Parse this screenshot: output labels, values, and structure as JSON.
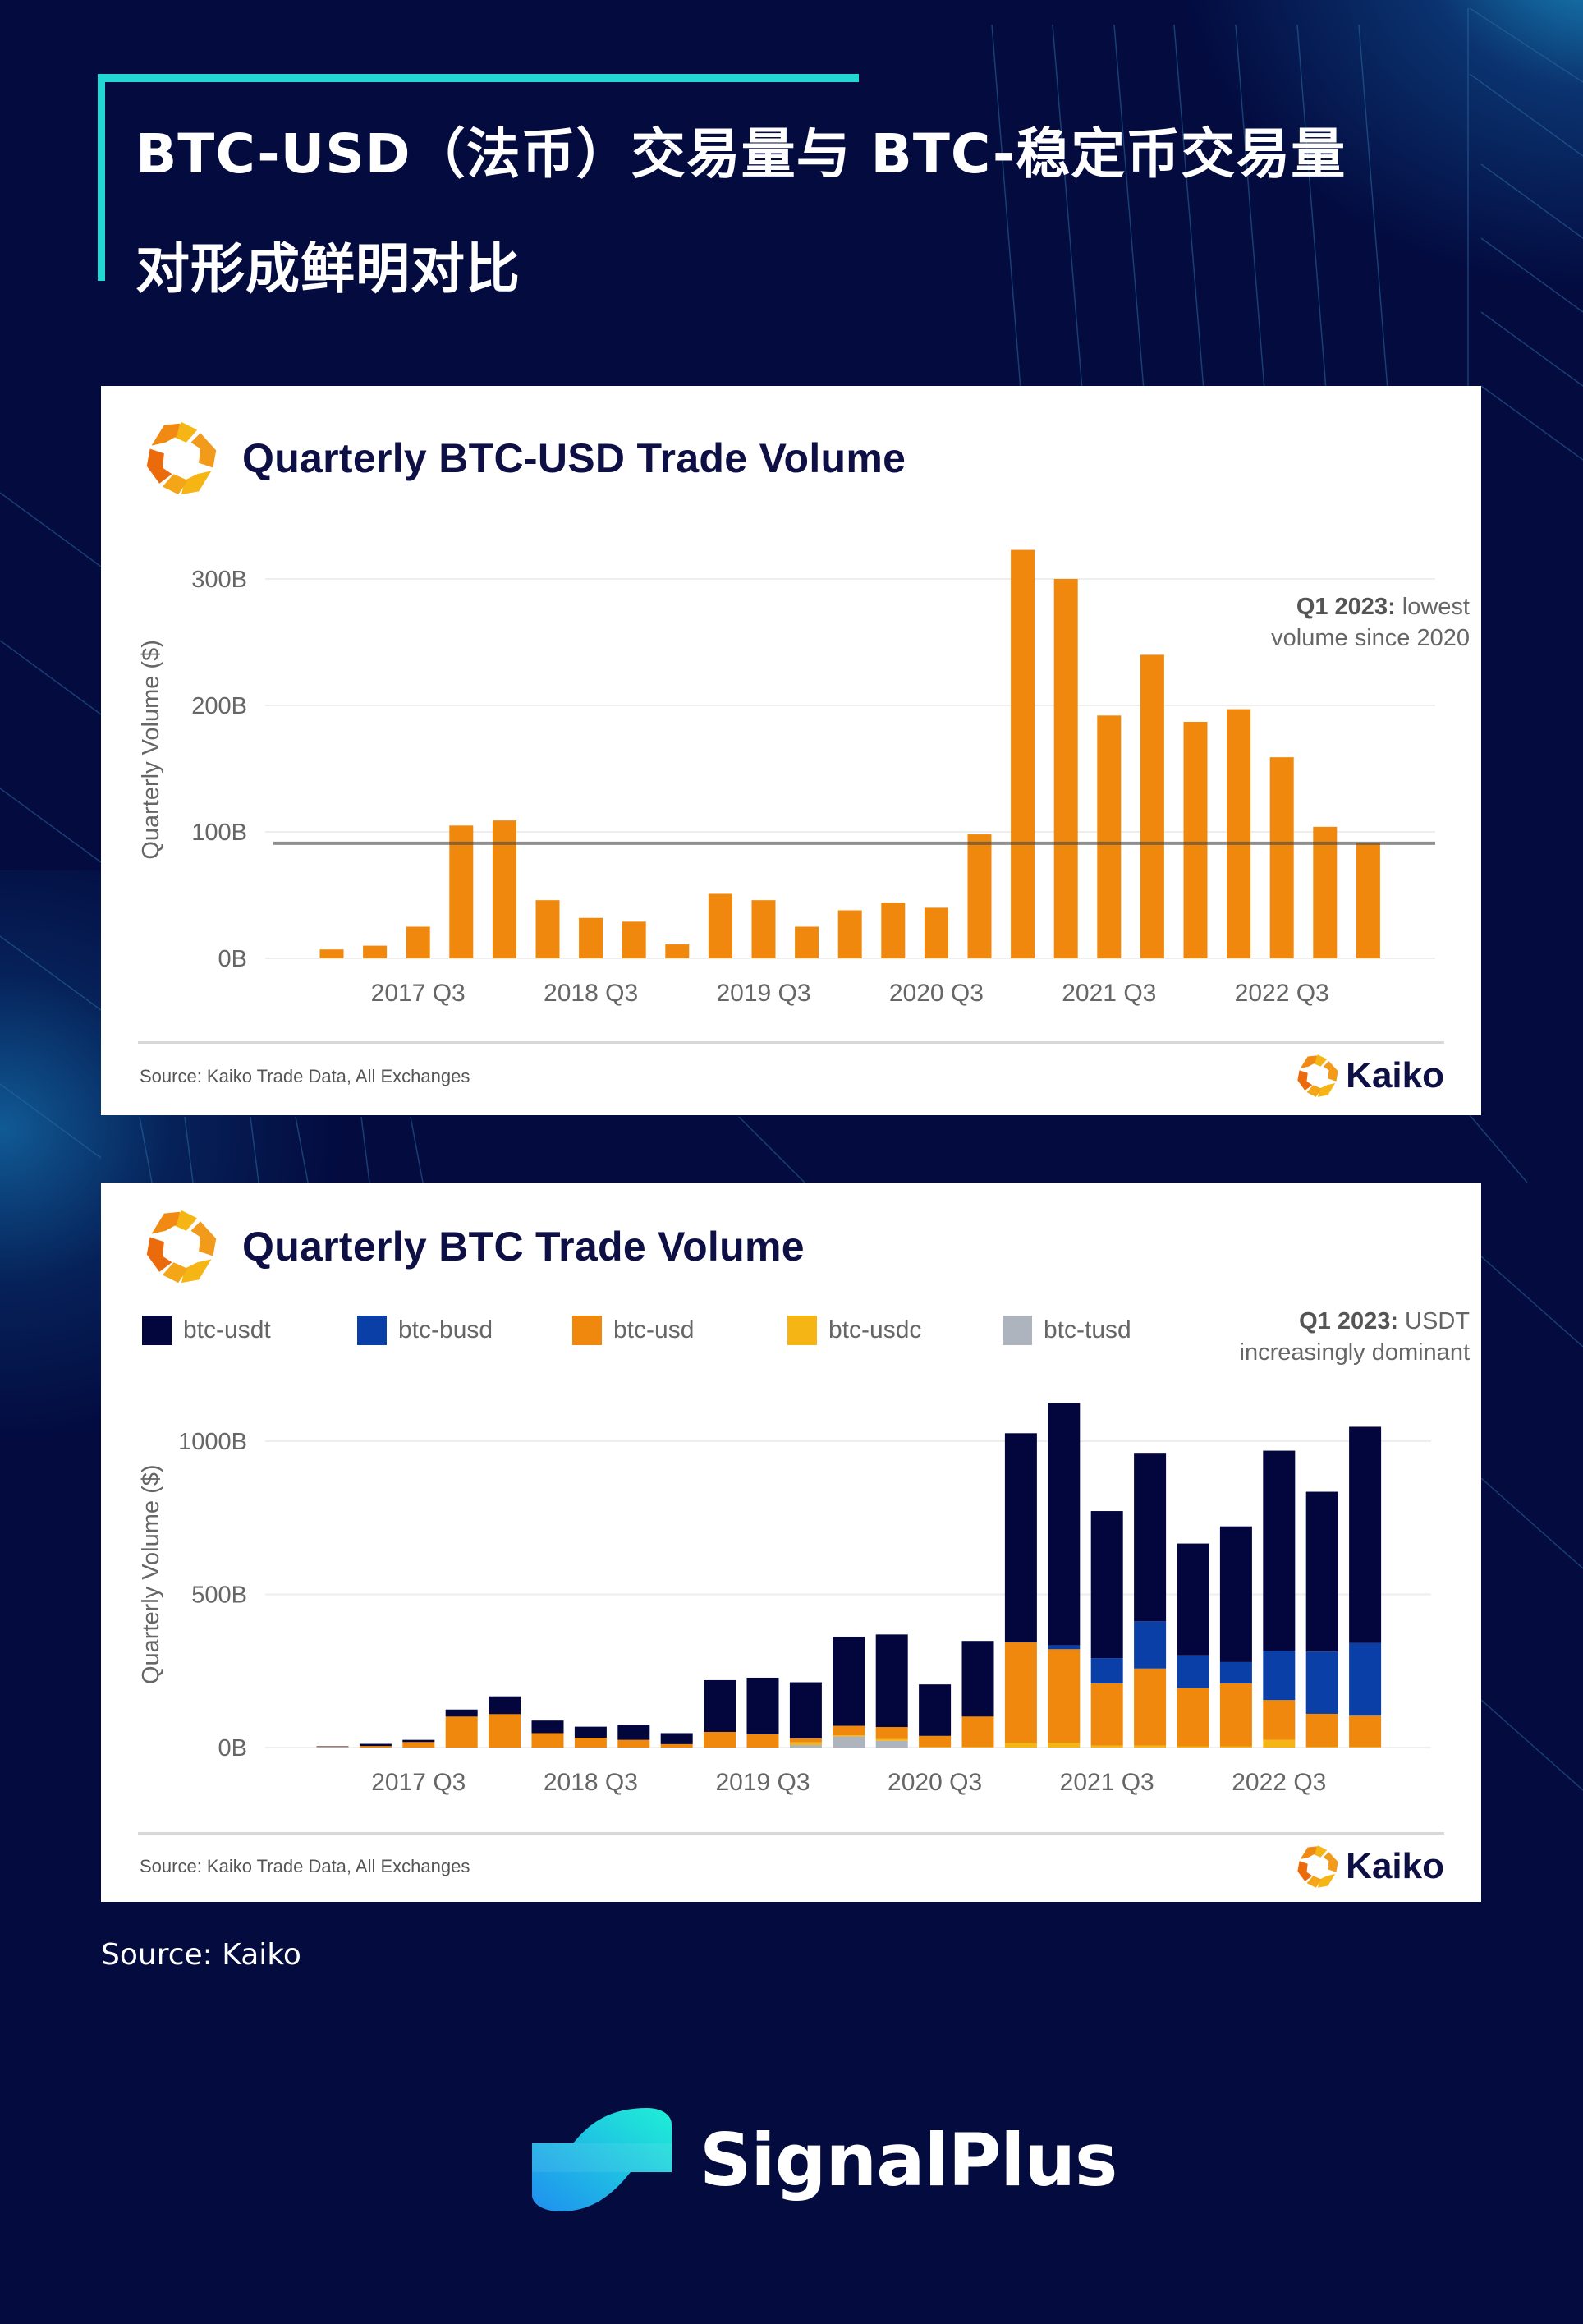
{
  "header": {
    "title_line1": "BTC-USD（法币）交易量与 BTC-稳定币交易量",
    "title_line2": "对形成鲜明对比"
  },
  "colors": {
    "background": "#030b3f",
    "accent_teal": "#22d8d5",
    "btc_usdt": "#03053d",
    "btc_busd": "#0b3fa8",
    "btc_usd": "#ef880d",
    "btc_usdc": "#f5b514",
    "btc_tusd": "#aeb4bd",
    "kaiko_navy": "#0d0f45"
  },
  "cards": [
    {
      "title": "Quarterly BTC-USD Trade Volume",
      "source": "Source: Kaiko Trade Data, All Exchanges",
      "logo_text": "Kaiko",
      "annotation_bold": "Q1 2023:",
      "annotation_rest": " lowest",
      "annotation_line2": "volume since 2020"
    },
    {
      "title": "Quarterly BTC Trade Volume",
      "source": "Source: Kaiko Trade Data, All Exchanges",
      "logo_text": "Kaiko",
      "annotation_bold": "Q1 2023:",
      "annotation_rest": " USDT",
      "annotation_line2": "increasingly dominant",
      "legend": [
        {
          "key": "btc_usdt",
          "label": "btc-usdt"
        },
        {
          "key": "btc_busd",
          "label": "btc-busd"
        },
        {
          "key": "btc_usd",
          "label": "btc-usd"
        },
        {
          "key": "btc_usdc",
          "label": "btc-usdc"
        },
        {
          "key": "btc_tusd",
          "label": "btc-tusd"
        }
      ]
    }
  ],
  "chart_data": [
    {
      "type": "bar",
      "title": "Quarterly BTC-USD Trade Volume",
      "xlabel": "",
      "ylabel": "Quarterly Volume ($)",
      "unit": "B",
      "ylim": [
        0,
        330
      ],
      "yticks": [
        0,
        100,
        200,
        300
      ],
      "ytick_labels": [
        "0B",
        "100B",
        "200B",
        "300B"
      ],
      "grid": true,
      "categories": [
        "2017 Q1",
        "2017 Q2",
        "2017 Q3",
        "2017 Q4",
        "2018 Q1",
        "2018 Q2",
        "2018 Q3",
        "2018 Q4",
        "2019 Q1",
        "2019 Q2",
        "2019 Q3",
        "2019 Q4",
        "2020 Q1",
        "2020 Q2",
        "2020 Q3",
        "2020 Q4",
        "2021 Q1",
        "2021 Q2",
        "2021 Q3",
        "2021 Q4",
        "2022 Q1",
        "2022 Q2",
        "2022 Q3",
        "2022 Q4",
        "2023 Q1"
      ],
      "xtick_labels": [
        "2017 Q3",
        "2018 Q3",
        "2019 Q3",
        "2020 Q3",
        "2021 Q3",
        "2022 Q3"
      ],
      "values": [
        7,
        10,
        25,
        105,
        109,
        46,
        32,
        29,
        11,
        51,
        46,
        25,
        38,
        44,
        40,
        98,
        323,
        300,
        192,
        240,
        187,
        197,
        159,
        104,
        91
      ],
      "reference_line": 91,
      "annotation": "Q1 2023: lowest volume since 2020"
    },
    {
      "type": "bar",
      "stacked": true,
      "title": "Quarterly BTC Trade Volume",
      "xlabel": "",
      "ylabel": "Quarterly Volume ($)",
      "unit": "B",
      "ylim": [
        0,
        1130
      ],
      "yticks": [
        0,
        500,
        1000
      ],
      "ytick_labels": [
        "0B",
        "500B",
        "1000B"
      ],
      "grid": true,
      "legend": "top",
      "categories": [
        "2017 Q1",
        "2017 Q2",
        "2017 Q3",
        "2017 Q4",
        "2018 Q1",
        "2018 Q2",
        "2018 Q3",
        "2018 Q4",
        "2019 Q1",
        "2019 Q2",
        "2019 Q3",
        "2019 Q4",
        "2020 Q1",
        "2020 Q2",
        "2020 Q3",
        "2020 Q4",
        "2021 Q1",
        "2021 Q2",
        "2021 Q3",
        "2021 Q4",
        "2022 Q1",
        "2022 Q2",
        "2022 Q3",
        "2022 Q4",
        "2023 Q1"
      ],
      "xtick_labels": [
        "2017 Q3",
        "2018 Q3",
        "2019 Q3",
        "2020 Q3",
        "2021 Q3",
        "2022 Q3"
      ],
      "series": [
        {
          "name": "btc-tusd",
          "key": "btc_tusd",
          "values": [
            2,
            0,
            0,
            0,
            0,
            0,
            0,
            0,
            0,
            0,
            0,
            8,
            36,
            22,
            0,
            0,
            0,
            0,
            0,
            0,
            0,
            0,
            0,
            0,
            0
          ]
        },
        {
          "name": "btc-usdc",
          "key": "btc_usdc",
          "values": [
            0,
            0,
            0,
            0,
            0,
            0,
            0,
            0,
            0,
            0,
            0,
            9,
            4,
            6,
            2,
            2,
            16,
            16,
            6,
            6,
            4,
            4,
            25,
            2,
            2
          ]
        },
        {
          "name": "btc-usd",
          "key": "btc_usd",
          "values": [
            1,
            5,
            18,
            101,
            109,
            47,
            32,
            25,
            11,
            51,
            43,
            13,
            31,
            39,
            36,
            99,
            327,
            305,
            203,
            252,
            190,
            205,
            130,
            108,
            102
          ]
        },
        {
          "name": "btc-busd",
          "key": "btc_busd",
          "values": [
            0,
            0,
            0,
            0,
            0,
            0,
            0,
            0,
            0,
            0,
            0,
            0,
            0,
            0,
            0,
            0,
            0,
            13,
            83,
            154,
            107,
            70,
            161,
            203,
            237
          ]
        },
        {
          "name": "btc-usdt",
          "key": "btc_usdt",
          "values": [
            1,
            7,
            7,
            23,
            58,
            41,
            36,
            50,
            36,
            169,
            185,
            183,
            291,
            302,
            168,
            247,
            683,
            791,
            480,
            550,
            365,
            443,
            653,
            522,
            706
          ]
        }
      ],
      "annotation": "Q1 2023: USDT increasingly dominant"
    }
  ],
  "footer": {
    "source": "Source: Kaiko",
    "brand": "SignalPlus"
  }
}
